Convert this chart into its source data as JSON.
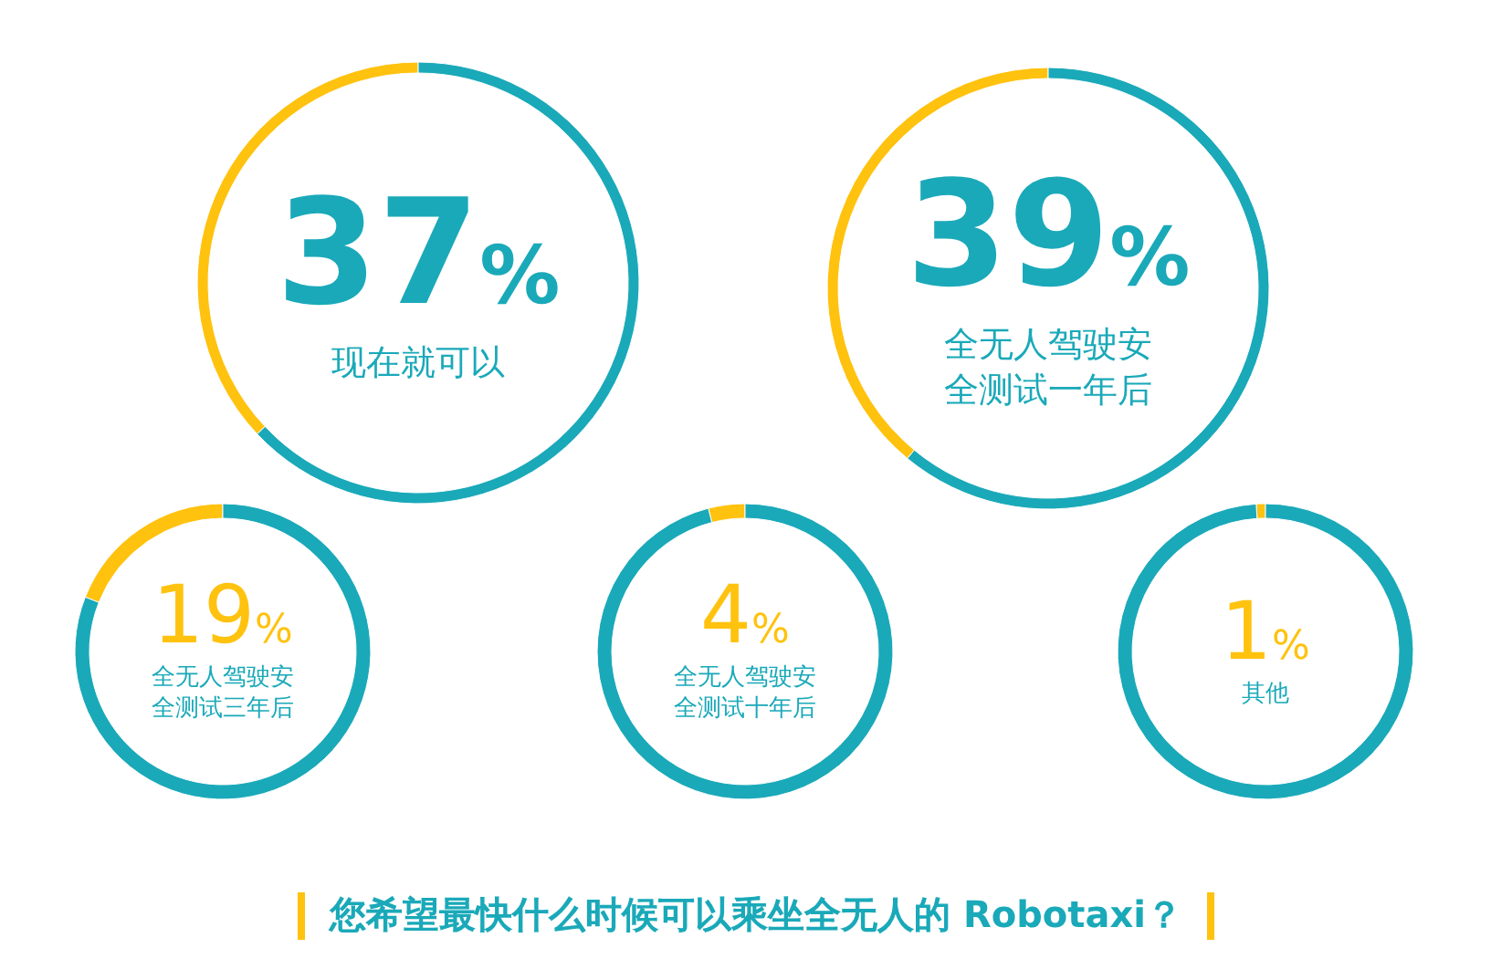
{
  "chart_data": [
    {
      "type": "donut",
      "title": "您希望最快什么时候可以乘坐全无人的 Robotaxi？",
      "categories": [
        "现在就可以",
        null
      ],
      "values": [
        37,
        63
      ],
      "colors": [
        "#ffc20e",
        "#1aa9b9"
      ],
      "value_labels": [
        "37%",
        null
      ]
    },
    {
      "type": "donut",
      "categories": [
        "全无人驾驶安全测试一年后",
        null
      ],
      "values": [
        39,
        61
      ],
      "colors": [
        "#ffc20e",
        "#1aa9b9"
      ],
      "value_labels": [
        "39%",
        null
      ]
    },
    {
      "type": "donut",
      "categories": [
        "全无人驾驶安全测试三年后",
        null
      ],
      "values": [
        19,
        81
      ],
      "colors": [
        "#ffc20e",
        "#1aa9b9"
      ],
      "value_labels": [
        "19%",
        null
      ]
    },
    {
      "type": "donut",
      "categories": [
        "全无人驾驶安全测试十年后",
        null
      ],
      "values": [
        4,
        96
      ],
      "colors": [
        "#ffc20e",
        "#1aa9b9"
      ],
      "value_labels": [
        "4%",
        null
      ]
    },
    {
      "type": "donut",
      "categories": [
        "其他",
        null
      ],
      "values": [
        1,
        99
      ],
      "colors": [
        "#ffc20e",
        "#1aa9b9"
      ],
      "value_labels": [
        "1%",
        null
      ]
    }
  ]
}
